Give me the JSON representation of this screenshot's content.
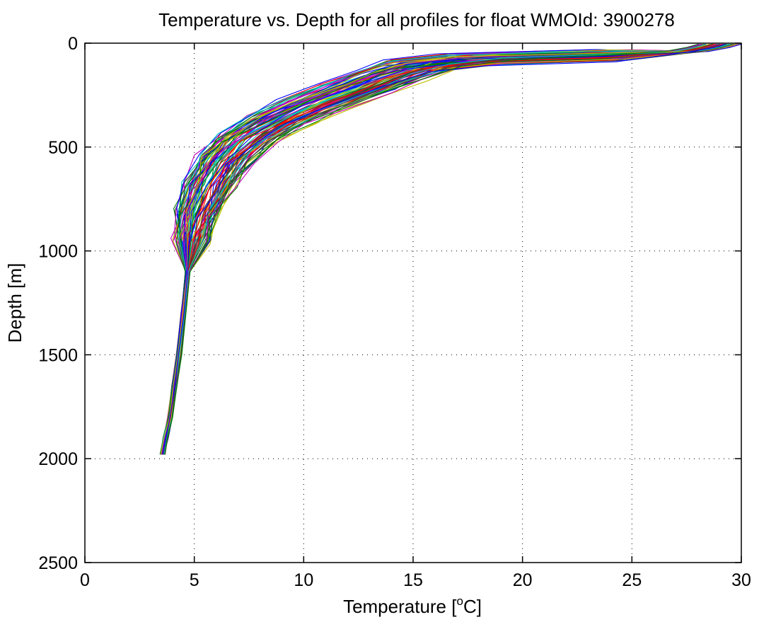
{
  "chart_data": {
    "type": "line",
    "title": "Temperature vs. Depth for all profiles for float WMOId: 3900278",
    "xlabel": "Temperature [",
    "xlabel_superscript": "o",
    "xlabel_suffix": "C]",
    "ylabel": "Depth [m]",
    "xlim": [
      0,
      30
    ],
    "ylim": [
      0,
      2500
    ],
    "y_reversed": true,
    "x_ticks": [
      0,
      5,
      10,
      15,
      20,
      25,
      30
    ],
    "y_ticks": [
      0,
      500,
      1000,
      1500,
      2000,
      2500
    ],
    "x_tick_labels": [
      "0",
      "5",
      "10",
      "15",
      "20",
      "25",
      "30"
    ],
    "y_tick_labels": [
      "0",
      "500",
      "1000",
      "1500",
      "2000",
      "2500"
    ],
    "grid": true,
    "legend": "none",
    "colors": [
      "#0000ff",
      "#008000",
      "#ff0000",
      "#00bfbf",
      "#bf00bf",
      "#bfbf00",
      "#404040"
    ],
    "series_note_count": 100,
    "typical_profile": {
      "x": [
        29.0,
        28.5,
        27.5,
        24.0,
        18.0,
        15.5,
        14.0,
        12.5,
        10.5,
        9.0,
        7.5,
        6.5,
        5.8,
        5.2,
        4.9,
        4.7,
        4.5,
        4.3,
        4.1,
        3.9,
        3.7,
        3.55
      ],
      "y": [
        5,
        20,
        40,
        60,
        80,
        110,
        160,
        220,
        300,
        370,
        460,
        560,
        680,
        820,
        950,
        1100,
        1300,
        1500,
        1650,
        1800,
        1900,
        1980
      ]
    }
  }
}
